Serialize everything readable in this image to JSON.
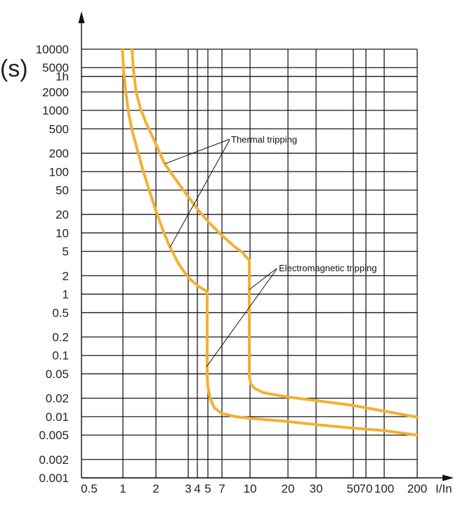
{
  "chart_data": {
    "type": "line",
    "xlabel": "I/In",
    "ylabel": "(s)",
    "xscale": "log",
    "yscale": "log",
    "xlim": [
      0.5,
      200
    ],
    "ylim": [
      0.001,
      10000
    ],
    "grid": true,
    "line_color": "#F2B132",
    "x_ticks": [
      {
        "value": 0.5,
        "label": "0.5"
      },
      {
        "value": 1,
        "label": "1"
      },
      {
        "value": 2,
        "label": "2"
      },
      {
        "value": 3,
        "label": "3"
      },
      {
        "value": 4,
        "label": "4"
      },
      {
        "value": 5,
        "label": "5"
      },
      {
        "value": 7,
        "label": "7"
      },
      {
        "value": 10,
        "label": "10"
      },
      {
        "value": 20,
        "label": "20"
      },
      {
        "value": 30,
        "label": "30"
      },
      {
        "value": 50,
        "label": "50"
      },
      {
        "value": 70,
        "label": "70"
      },
      {
        "value": 100,
        "label": "100"
      },
      {
        "value": 200,
        "label": "200"
      }
    ],
    "y_ticks": [
      {
        "value": 10000,
        "label": "10000"
      },
      {
        "value": 5000,
        "label": "5000"
      },
      {
        "value": 3600,
        "label": "1h"
      },
      {
        "value": 2000,
        "label": "2000"
      },
      {
        "value": 1000,
        "label": "1000"
      },
      {
        "value": 500,
        "label": "500"
      },
      {
        "value": 200,
        "label": "200"
      },
      {
        "value": 100,
        "label": "100"
      },
      {
        "value": 50,
        "label": "50"
      },
      {
        "value": 20,
        "label": "20"
      },
      {
        "value": 10,
        "label": "10"
      },
      {
        "value": 5,
        "label": "5"
      },
      {
        "value": 2,
        "label": "2"
      },
      {
        "value": 1,
        "label": "1"
      },
      {
        "value": 0.5,
        "label": "0.5"
      },
      {
        "value": 0.2,
        "label": "0.2"
      },
      {
        "value": 0.1,
        "label": "0.1"
      },
      {
        "value": 0.05,
        "label": "0.05"
      },
      {
        "value": 0.02,
        "label": "0.02"
      },
      {
        "value": 0.01,
        "label": "0.01"
      },
      {
        "value": 0.005,
        "label": "0.005"
      },
      {
        "value": 0.002,
        "label": "0.002"
      },
      {
        "value": 0.001,
        "label": "0.001"
      }
    ],
    "series": [
      {
        "x": [
          0.99,
          1.015,
          1.06,
          1.125,
          1.21,
          1.34,
          1.51,
          1.73,
          2,
          2.2,
          2.39,
          2.65,
          3,
          4.06,
          4.92,
          4.92,
          5.0,
          5.26,
          5.82,
          6.88,
          8.3,
          10,
          20,
          30,
          50,
          100,
          200
        ],
        "y": [
          10000,
          4500,
          2050,
          930,
          480,
          247,
          112,
          51,
          23,
          10.4,
          5.8,
          3.2,
          1.86,
          1.36,
          1.1,
          0.053,
          0.031,
          0.02,
          0.014,
          0.0114,
          0.01,
          0.0094,
          0.0083,
          0.0074,
          0.0065,
          0.0059,
          0.005
        ]
      },
      {
        "x": [
          1.21,
          1.25,
          1.32,
          1.45,
          1.63,
          1.94,
          2.22,
          2.56,
          3,
          4,
          5,
          7,
          8.3,
          9.1,
          9.45,
          9.9,
          9.9,
          10.13,
          10.94,
          12.8,
          20,
          30,
          50,
          100,
          200
        ],
        "y": [
          10000,
          4500,
          2000,
          1050,
          620,
          320,
          138,
          75,
          39,
          24.8,
          15.4,
          9.1,
          5.8,
          4.8,
          4.12,
          3.61,
          0.046,
          0.034,
          0.0287,
          0.0245,
          0.0209,
          0.0183,
          0.0152,
          0.0123,
          0.0098
        ]
      }
    ],
    "annotations": [
      {
        "text": "Thermal tripping"
      },
      {
        "text": "Electromagnetic tripping"
      }
    ]
  }
}
